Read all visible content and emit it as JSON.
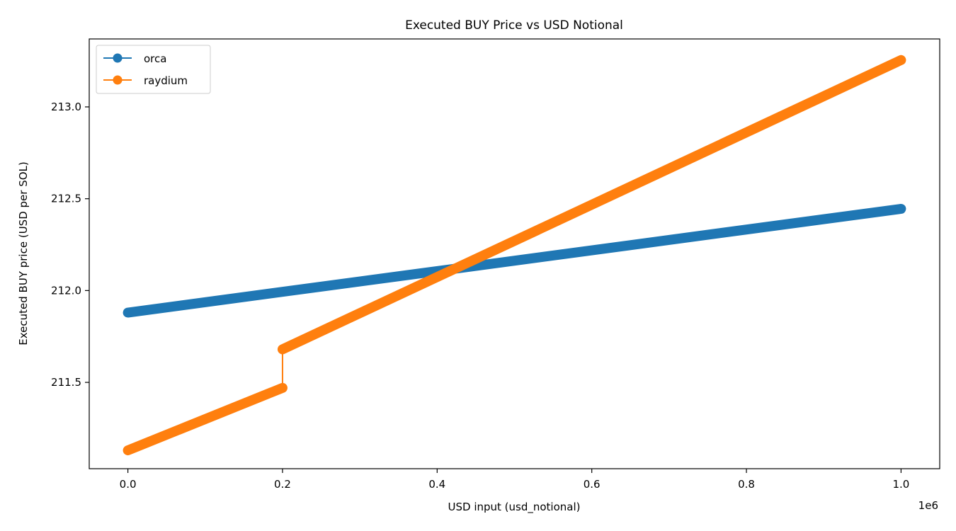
{
  "chart_data": {
    "type": "line",
    "title": "Executed BUY Price vs USD Notional",
    "xlabel": "USD input (usd_notional)",
    "ylabel": "Executed BUY price (USD per SOL)",
    "x_offset_label": "1e6",
    "xlim": [
      -0.05,
      1.05
    ],
    "ylim": [
      211.03,
      213.37
    ],
    "xticks": [
      0.0,
      0.2,
      0.4,
      0.6,
      0.8,
      1.0
    ],
    "xtick_labels": [
      "0.0",
      "0.2",
      "0.4",
      "0.6",
      "0.8",
      "1.0"
    ],
    "yticks": [
      211.5,
      212.0,
      212.5,
      213.0
    ],
    "ytick_labels": [
      "211.5",
      "212.0",
      "212.5",
      "213.0"
    ],
    "grid": false,
    "legend_position": "upper-left",
    "series": [
      {
        "name": "orca",
        "color": "#1f77b4",
        "marker": "circle",
        "segments": [
          {
            "x_start": 0.0,
            "x_end": 1.0,
            "y_start": 211.88,
            "y_end": 212.445
          }
        ]
      },
      {
        "name": "raydium",
        "color": "#ff7f0e",
        "marker": "circle",
        "segments": [
          {
            "x_start": 0.0,
            "x_end": 0.2,
            "y_start": 211.13,
            "y_end": 211.47
          },
          {
            "x_start": 0.2,
            "x_end": 1.0,
            "y_start": 211.68,
            "y_end": 213.255
          }
        ]
      }
    ]
  }
}
